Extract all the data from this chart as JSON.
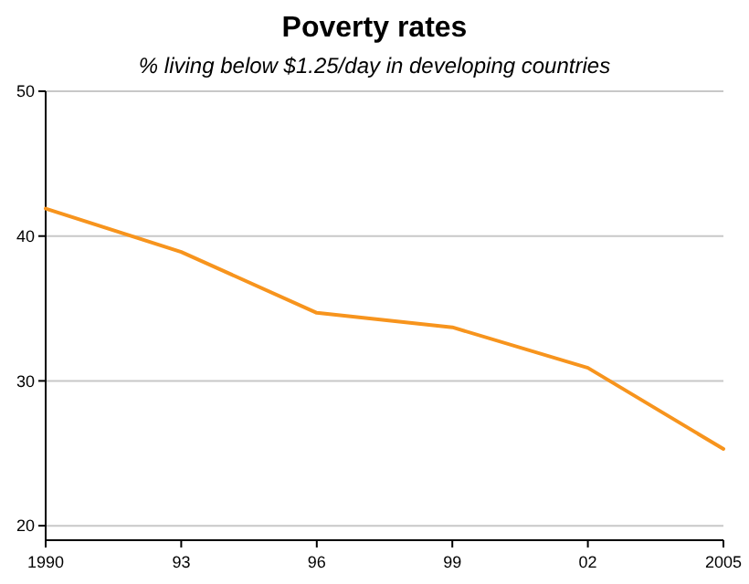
{
  "chart_data": {
    "type": "line",
    "title": "Poverty rates",
    "subtitle": "% living below $1.25/day in developing countries",
    "x": [
      1990,
      1993,
      1996,
      1999,
      2002,
      2005
    ],
    "series": [
      {
        "color": "#f7941d",
        "values": [
          41.9,
          38.9,
          34.7,
          33.7,
          30.9,
          25.3
        ]
      }
    ],
    "xlim": [
      1990,
      2005
    ],
    "xticks": [
      1990,
      {
        "value": 1993,
        "label": "93"
      },
      {
        "value": 1996,
        "label": "96"
      },
      {
        "value": 1999,
        "label": "99"
      },
      {
        "value": 2002,
        "label": "02"
      },
      2005
    ],
    "ylim": [
      19,
      50
    ],
    "yticks": [
      20,
      30,
      40,
      50
    ],
    "grid": "y",
    "marker": "none",
    "line_style": "solid"
  }
}
